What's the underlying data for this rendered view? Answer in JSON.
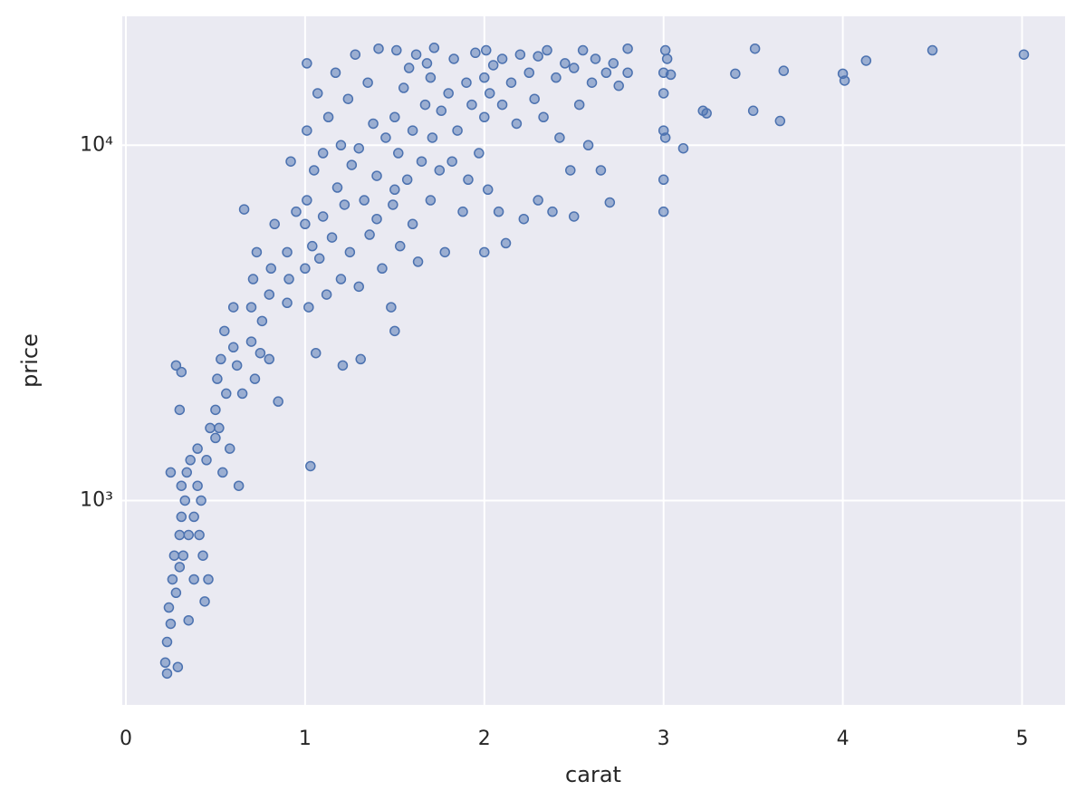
{
  "chart_data": {
    "type": "scatter",
    "xlabel": "carat",
    "ylabel": "price",
    "log_y": true,
    "grid": true,
    "color": "#4c72b0",
    "xlim": [
      -0.02,
      5.24
    ],
    "xticks": [
      0,
      1,
      2,
      3,
      4,
      5
    ],
    "ylim": [
      266,
      23060
    ],
    "yticks": [
      {
        "value": 1000,
        "label": "10³"
      },
      {
        "value": 10000,
        "label": "10⁴"
      }
    ],
    "x": [
      0.23,
      0.23,
      0.24,
      0.25,
      0.26,
      0.27,
      0.28,
      0.3,
      0.3,
      0.31,
      0.31,
      0.32,
      0.33,
      0.34,
      0.35,
      0.36,
      0.38,
      0.4,
      0.4,
      0.41,
      0.42,
      0.43,
      0.45,
      0.46,
      0.5,
      0.5,
      0.51,
      0.52,
      0.53,
      0.54,
      0.55,
      0.56,
      0.58,
      0.6,
      0.6,
      0.62,
      0.63,
      0.65,
      0.66,
      0.7,
      0.7,
      0.71,
      0.72,
      0.73,
      0.75,
      0.76,
      0.8,
      0.8,
      0.81,
      0.83,
      0.85,
      0.9,
      0.9,
      0.91,
      0.92,
      0.95,
      0.28,
      0.3,
      0.31,
      0.25,
      0.22,
      0.29,
      0.35,
      0.38,
      0.44,
      0.47,
      1.0,
      1.0,
      1.01,
      1.01,
      1.01,
      1.02,
      1.03,
      1.04,
      1.05,
      1.06,
      1.07,
      1.08,
      1.1,
      1.1,
      1.12,
      1.13,
      1.15,
      1.17,
      1.18,
      1.2,
      1.2,
      1.21,
      1.22,
      1.24,
      1.25,
      1.26,
      1.28,
      1.3,
      1.3,
      1.31,
      1.33,
      1.35,
      1.36,
      1.38,
      1.4,
      1.4,
      1.41,
      1.43,
      1.45,
      1.48,
      1.49,
      1.5,
      1.5,
      1.5,
      1.51,
      1.52,
      1.53,
      1.55,
      1.57,
      1.58,
      1.6,
      1.6,
      1.62,
      1.63,
      1.65,
      1.67,
      1.68,
      1.7,
      1.7,
      1.71,
      1.72,
      1.75,
      1.76,
      1.78,
      1.8,
      1.82,
      1.83,
      1.85,
      1.88,
      1.9,
      1.91,
      1.93,
      1.95,
      1.97,
      2.0,
      2.0,
      2.0,
      2.01,
      2.02,
      2.03,
      2.05,
      2.08,
      2.1,
      2.1,
      2.12,
      2.15,
      2.18,
      2.2,
      2.22,
      2.25,
      2.28,
      2.3,
      2.3,
      2.33,
      2.35,
      2.38,
      2.4,
      2.42,
      2.45,
      2.48,
      2.5,
      2.5,
      2.53,
      2.55,
      2.58,
      2.6,
      2.62,
      2.65,
      2.68,
      2.7,
      2.72,
      2.75,
      2.8,
      2.8,
      3.0,
      3.0,
      3.0,
      3.0,
      3.0,
      3.01,
      3.01,
      3.02,
      3.04,
      3.11,
      3.22,
      3.24,
      3.4,
      3.5,
      3.51,
      3.65,
      3.67,
      4.0,
      4.01,
      4.13,
      4.5,
      5.01
    ],
    "values": [
      326,
      400,
      500,
      450,
      600,
      700,
      550,
      800,
      650,
      900,
      1100,
      700,
      1000,
      1200,
      800,
      1300,
      900,
      1100,
      1400,
      800,
      1000,
      700,
      1300,
      600,
      1500,
      1800,
      2200,
      1600,
      2500,
      1200,
      3000,
      2000,
      1400,
      2700,
      3500,
      2400,
      1100,
      2000,
      6600,
      2800,
      3500,
      4200,
      2200,
      5000,
      2600,
      3200,
      3800,
      2500,
      4500,
      6000,
      1900,
      3600,
      5000,
      4200,
      9000,
      6500,
      2400,
      1800,
      2300,
      1200,
      350,
      340,
      460,
      600,
      520,
      1600,
      4500,
      6000,
      7000,
      17000,
      11000,
      3500,
      1250,
      5200,
      8500,
      2600,
      14000,
      4800,
      9500,
      6300,
      3800,
      12000,
      5500,
      16000,
      7600,
      4200,
      10000,
      2400,
      6800,
      13500,
      5000,
      8800,
      18000,
      4000,
      9800,
      2500,
      7000,
      15000,
      5600,
      11500,
      6200,
      8200,
      18700,
      4500,
      10500,
      3500,
      6800,
      3000,
      7500,
      12000,
      18500,
      9500,
      5200,
      14500,
      8000,
      16500,
      6000,
      11000,
      18000,
      4700,
      9000,
      13000,
      17000,
      7000,
      15500,
      10500,
      18800,
      8500,
      12500,
      5000,
      14000,
      9000,
      17500,
      11000,
      6500,
      15000,
      8000,
      13000,
      18200,
      9500,
      5000,
      12000,
      15500,
      18500,
      7500,
      14000,
      16800,
      6500,
      13000,
      17500,
      5300,
      15000,
      11500,
      18000,
      6200,
      16000,
      13500,
      7000,
      17800,
      12000,
      18500,
      6500,
      15500,
      10500,
      17000,
      8500,
      16500,
      6300,
      13000,
      18500,
      10000,
      15000,
      17500,
      8500,
      16000,
      6900,
      17000,
      14700,
      18700,
      16000,
      6500,
      8000,
      11000,
      14000,
      16000,
      18500,
      10500,
      17500,
      15800,
      9800,
      12500,
      12300,
      15900,
      12500,
      18700,
      11700,
      16200,
      15900,
      15200,
      17300,
      18500,
      18000
    ]
  }
}
